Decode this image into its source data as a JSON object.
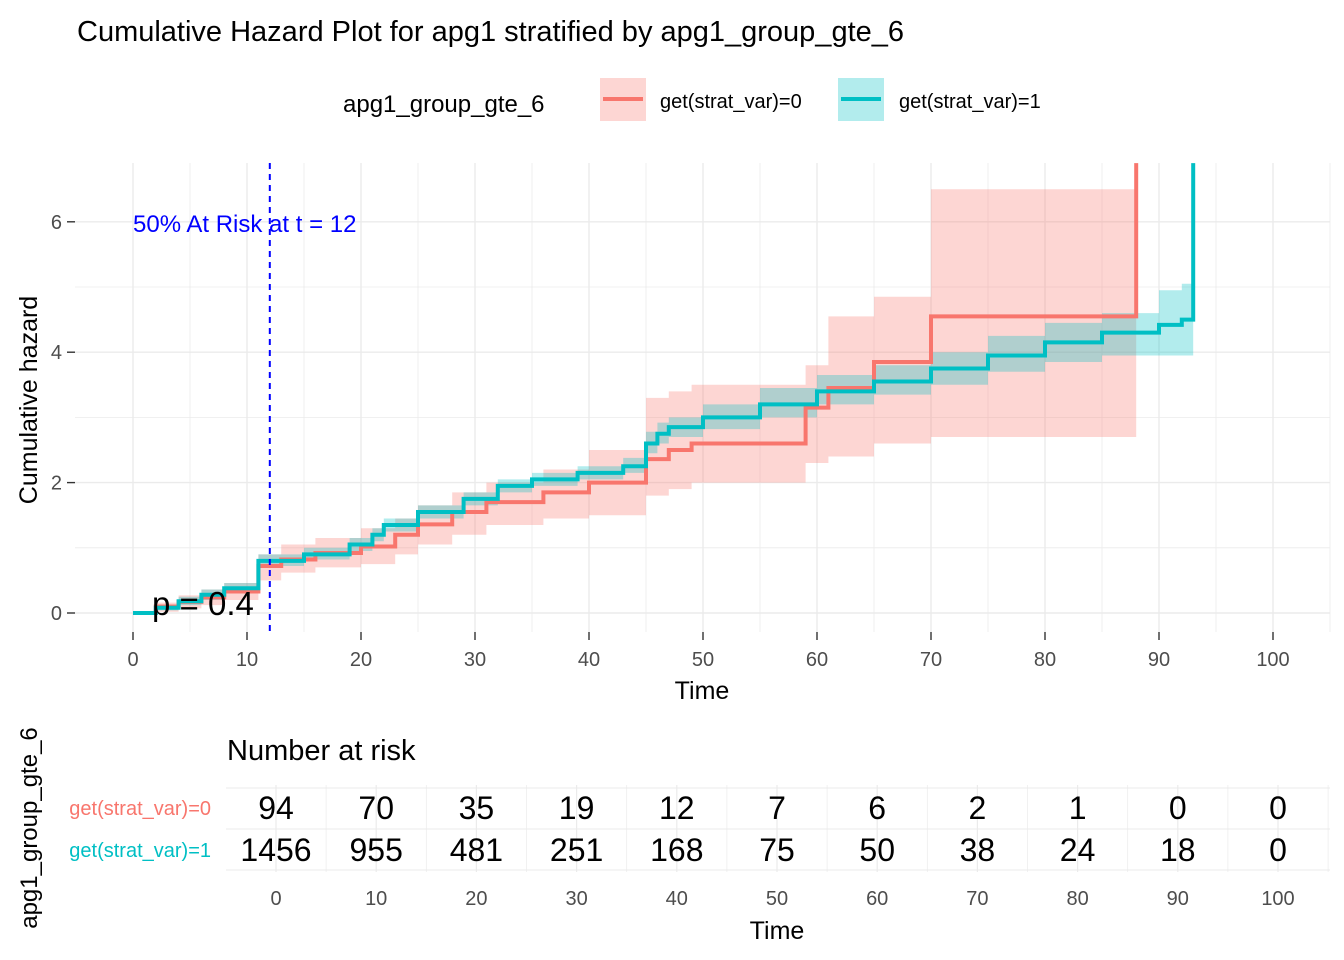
{
  "title": "Cumulative Hazard Plot for apg1 stratified by apg1_group_gte_6",
  "legend": {
    "title": "apg1_group_gte_6",
    "position": "top",
    "entries": [
      {
        "label": "get(strat_var)=0",
        "color": "#F8766D"
      },
      {
        "label": "get(strat_var)=1",
        "color": "#00BFC4"
      }
    ]
  },
  "annotations": {
    "median_label": "50% At Risk at t = 12",
    "median_time": 12,
    "pvalue": "p = 0.4"
  },
  "chart_data": [
    {
      "type": "line",
      "subtype": "step",
      "xlabel": "Time",
      "ylabel": "Cumulative hazard",
      "xlim": [
        -1,
        105
      ],
      "ylim": [
        -0.2,
        6.8
      ],
      "x_ticks": [
        0,
        10,
        20,
        30,
        40,
        50,
        60,
        70,
        80,
        90,
        100
      ],
      "y_ticks": [
        0,
        2,
        4,
        6
      ],
      "grid": true,
      "series": [
        {
          "name": "get(strat_var)=0",
          "color": "#F8766D",
          "x": [
            0,
            2,
            4,
            6,
            8,
            11,
            13,
            16,
            20,
            23,
            25,
            28,
            31,
            36,
            40,
            45,
            47,
            49,
            59,
            61,
            65,
            70,
            88,
            88
          ],
          "y": [
            0,
            0.1,
            0.17,
            0.24,
            0.33,
            0.72,
            0.82,
            0.92,
            1.02,
            1.2,
            1.36,
            1.55,
            1.7,
            1.85,
            2.0,
            2.36,
            2.5,
            2.6,
            3.15,
            3.45,
            3.85,
            4.55,
            4.55,
            6.9
          ],
          "lower": [
            0,
            0.02,
            0.07,
            0.12,
            0.2,
            0.5,
            0.62,
            0.7,
            0.75,
            0.9,
            1.05,
            1.2,
            1.35,
            1.45,
            1.5,
            1.8,
            1.9,
            2.0,
            2.3,
            2.4,
            2.6,
            2.7,
            2.6,
            2.6
          ],
          "upper": [
            0,
            0.16,
            0.27,
            0.36,
            0.46,
            0.9,
            1.05,
            1.15,
            1.3,
            1.45,
            1.65,
            1.85,
            2.0,
            2.2,
            2.5,
            3.3,
            3.4,
            3.5,
            3.8,
            4.55,
            4.85,
            6.5,
            6.5,
            6.5
          ]
        },
        {
          "name": "get(strat_var)=1",
          "color": "#00BFC4",
          "x": [
            0,
            2,
            4,
            6,
            8,
            11,
            15,
            19,
            21,
            22,
            25,
            29,
            32,
            35,
            39,
            43,
            45,
            46,
            47,
            50,
            55,
            60,
            65,
            70,
            75,
            80,
            85,
            90,
            92,
            93
          ],
          "y": [
            0,
            0.08,
            0.18,
            0.28,
            0.38,
            0.8,
            0.9,
            1.05,
            1.2,
            1.35,
            1.55,
            1.75,
            1.95,
            2.05,
            2.15,
            2.25,
            2.6,
            2.75,
            2.85,
            3.0,
            3.2,
            3.4,
            3.55,
            3.75,
            3.95,
            4.15,
            4.3,
            4.42,
            4.5,
            6.9
          ],
          "lower": [
            0,
            0.04,
            0.12,
            0.2,
            0.3,
            0.72,
            0.82,
            0.95,
            1.1,
            1.25,
            1.45,
            1.65,
            1.85,
            1.95,
            2.05,
            2.15,
            2.45,
            2.6,
            2.7,
            2.82,
            3.0,
            3.2,
            3.35,
            3.5,
            3.7,
            3.85,
            3.95,
            3.95,
            3.95,
            3.95
          ],
          "upper": [
            0,
            0.13,
            0.25,
            0.36,
            0.46,
            0.9,
            1.0,
            1.15,
            1.3,
            1.45,
            1.65,
            1.85,
            2.05,
            2.15,
            2.25,
            2.38,
            2.78,
            2.92,
            3.0,
            3.2,
            3.45,
            3.65,
            3.8,
            4.0,
            4.25,
            4.45,
            4.6,
            4.95,
            5.05,
            5.05
          ]
        }
      ]
    },
    {
      "type": "table",
      "title": "Number at risk",
      "ylabel": "apg1_group_gte_6",
      "xlabel": "Time",
      "x": [
        0,
        10,
        20,
        30,
        40,
        50,
        60,
        70,
        80,
        90,
        100
      ],
      "rows": [
        {
          "label": "get(strat_var)=0",
          "color": "#F8766D",
          "values": [
            "94",
            "70",
            "35",
            "19",
            "12",
            "7",
            "6",
            "2",
            "1",
            "0",
            "0"
          ]
        },
        {
          "label": "get(strat_var)=1",
          "color": "#00BFC4",
          "values": [
            "1456",
            "955",
            "481",
            "251",
            "168",
            "75",
            "50",
            "38",
            "24",
            "18",
            "0"
          ]
        }
      ]
    }
  ]
}
